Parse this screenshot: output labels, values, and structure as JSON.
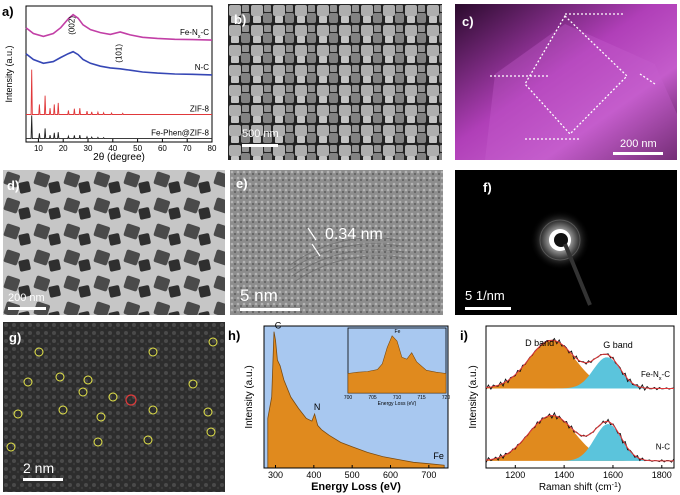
{
  "panels": {
    "a": {
      "label": "a)",
      "chart_data": {
        "type": "line",
        "xlabel": "2θ (degree)",
        "ylabel": "Intensity (a.u.)",
        "xlim": [
          5,
          80
        ],
        "xticks": [
          10,
          20,
          30,
          40,
          50,
          60,
          70,
          80
        ],
        "peak_labels": [
          "(002)",
          "(101)"
        ],
        "series": [
          {
            "name": "Fe-N",
            "sub": "x",
            "suffix": "-C",
            "color": "#c23fa6",
            "x": [
              5,
              8,
              12,
              16,
              19,
              22,
              24,
              26,
              28,
              31,
              35,
              39,
              43,
              47,
              52,
              58,
              65,
              72,
              80
            ],
            "y": [
              3.95,
              3.75,
              3.65,
              3.75,
              3.95,
              4.25,
              4.4,
              4.28,
              4.05,
              3.88,
              3.78,
              3.72,
              3.8,
              3.7,
              3.62,
              3.58,
              3.55,
              3.54,
              3.52
            ]
          },
          {
            "name": "N-C",
            "color": "#3647b5",
            "x": [
              5,
              8,
              12,
              16,
              19,
              22,
              24,
              26,
              28,
              31,
              35,
              39,
              43,
              47,
              52,
              58,
              65,
              72,
              80
            ],
            "y": [
              3.05,
              2.85,
              2.72,
              2.78,
              2.92,
              3.05,
              3.12,
              3.02,
              2.85,
              2.72,
              2.62,
              2.56,
              2.53,
              2.48,
              2.42,
              2.38,
              2.35,
              2.34,
              2.32
            ]
          },
          {
            "name": "ZIF-8",
            "color": "#e0383a",
            "peaks_x": [
              7.3,
              10.4,
              12.7,
              14.7,
              16.4,
              18.0,
              22.1,
              24.5,
              26.7,
              29.6,
              31.5,
              34.0,
              36.3,
              39.5,
              44.0
            ],
            "peaks_h": [
              1.55,
              0.35,
              0.65,
              0.22,
              0.35,
              0.4,
              0.14,
              0.2,
              0.22,
              0.12,
              0.09,
              0.08,
              0.06,
              0.05,
              0.04
            ],
            "baseline": 0.95
          },
          {
            "name": "Fe-Phen@ZIF-8",
            "color": "#222222",
            "peaks_x": [
              7.3,
              10.4,
              12.7,
              14.7,
              16.4,
              18.0,
              22.1,
              24.5,
              26.7,
              29.6,
              31.5,
              34.0,
              36.3
            ],
            "peaks_h": [
              0.8,
              0.18,
              0.35,
              0.12,
              0.2,
              0.22,
              0.08,
              0.11,
              0.12,
              0.06,
              0.05,
              0.04,
              0.03
            ],
            "baseline": 0.12
          }
        ]
      }
    },
    "b": {
      "label": "b)",
      "scale": "500 nm"
    },
    "c": {
      "label": "c)",
      "scale": "200 nm"
    },
    "d": {
      "label": "d)",
      "scale": "200 nm"
    },
    "e": {
      "label": "e)",
      "scale": "5 nm",
      "annotation": "0.34 nm"
    },
    "f": {
      "label": "f)",
      "scale": "5 1/nm"
    },
    "g": {
      "label": "g)",
      "scale": "2 nm"
    },
    "h": {
      "label": "h)",
      "chart_data": {
        "type": "area",
        "xlabel": "Energy Loss (eV)",
        "ylabel": "Intensity (a.u.)",
        "xlim": [
          270,
          750
        ],
        "xticks": [
          300,
          400,
          500,
          600,
          700
        ],
        "edge_labels": [
          "C",
          "N",
          "Fe"
        ],
        "x": [
          280,
          290,
          296,
          300,
          305,
          312,
          322,
          340,
          360,
          380,
          395,
          402,
          410,
          420,
          440,
          470,
          500,
          540,
          580,
          620,
          660,
          700,
          740
        ],
        "y": [
          0.35,
          0.5,
          0.96,
          0.9,
          0.76,
          0.72,
          0.62,
          0.5,
          0.42,
          0.35,
          0.33,
          0.38,
          0.3,
          0.27,
          0.23,
          0.18,
          0.15,
          0.11,
          0.08,
          0.06,
          0.04,
          0.03,
          0.02
        ],
        "fill": "#e08a1e",
        "background": "#a8c8f0",
        "inset": {
          "xlabel": "Energy Loss (eV)",
          "label": "Fe",
          "xlim": [
            700,
            720
          ],
          "xticks": [
            700,
            705,
            710,
            715,
            720
          ],
          "x": [
            700,
            702,
            704,
            706,
            707,
            708,
            709,
            710,
            711,
            712,
            713,
            714,
            716,
            718,
            720
          ],
          "y": [
            0.3,
            0.32,
            0.33,
            0.36,
            0.45,
            0.7,
            0.88,
            0.8,
            0.55,
            0.52,
            0.62,
            0.48,
            0.35,
            0.32,
            0.3
          ]
        }
      }
    },
    "i": {
      "label": "i)",
      "chart_data": {
        "type": "area",
        "xlabel": "Raman shift (cm",
        "xlabel_sup": "-1",
        "xlabel_end": ")",
        "ylabel": "Intensity (a.u.)",
        "xlim": [
          1080,
          1850
        ],
        "xticks": [
          1200,
          1400,
          1600,
          1800
        ],
        "band_labels": [
          "D band",
          "G band"
        ],
        "series": [
          {
            "name": "Fe-N",
            "sub": "x",
            "suffix": "-C",
            "d_center": 1350,
            "d_amp": 0.34,
            "g_center": 1575,
            "g_amp": 0.22,
            "offset": 0.56
          },
          {
            "name": "N-C",
            "d_center": 1350,
            "d_amp": 0.32,
            "g_center": 1580,
            "g_amp": 0.26,
            "offset": 0.05
          }
        ],
        "colors": {
          "d": "#e08a1e",
          "g": "#5bc4dc",
          "fit": "#e0383a",
          "raw": "#111111"
        }
      }
    }
  }
}
